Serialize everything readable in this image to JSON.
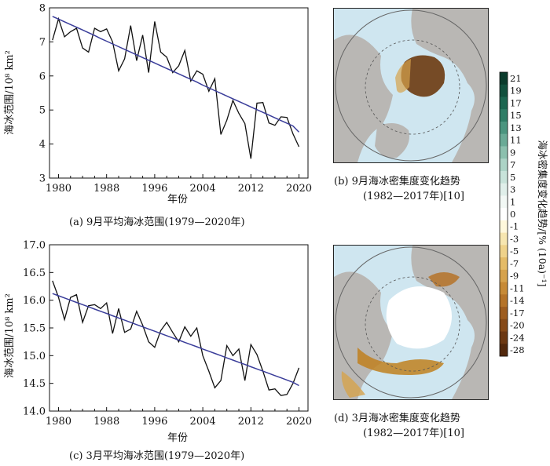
{
  "panel_a": {
    "caption": "(a) 9月平均海冰范围(1979—2020年)",
    "ylabel": "海冰范围/10⁸ km²",
    "xlabel": "年份"
  },
  "panel_b": {
    "caption_line1": "(b) 9月海冰密集度变化趋势",
    "caption_line2": "(1982—2017年)[10]"
  },
  "panel_c": {
    "caption": "(c) 3月平均海冰范围(1979—2020年)",
    "ylabel": "海冰范围/10⁸ km²",
    "xlabel": "年份"
  },
  "panel_d": {
    "caption_line1": "(d) 3月海冰密集度变化趋势",
    "caption_line2": "(1982—2017年)[10]"
  },
  "colorbar": {
    "label": "海冰密集度变化趋势/[% (10a)⁻¹]",
    "ticks": [
      "21",
      "19",
      "17",
      "15",
      "13",
      "11",
      "9",
      "7",
      "5",
      "3",
      "1",
      "0",
      "-1",
      "-3",
      "-5",
      "-7",
      "-9",
      "-11",
      "-14",
      "-17",
      "-20",
      "-24",
      "-28"
    ],
    "colors": [
      "#0a3b2c",
      "#11503d",
      "#1c6650",
      "#2f7d66",
      "#4b957f",
      "#6aaa96",
      "#8cc0ae",
      "#acd3c6",
      "#c8e3da",
      "#e0efea",
      "#f2f8f5",
      "#ffffff",
      "#fff8dc",
      "#f7e6b0",
      "#efd28a",
      "#e4bb67",
      "#d6a24c",
      "#c78a36",
      "#b57328",
      "#9e5d1f",
      "#864a18",
      "#6c3812",
      "#52280c"
    ]
  },
  "map_colors": {
    "ocean": "#cfe6f0",
    "land": "#b9b7b4",
    "ice": "#ffffff",
    "loss_strong": "#6b3a10",
    "loss_mid": "#c0801f",
    "loss_light": "#e8c57a"
  },
  "line_color": "#111111",
  "trend_color": "#3a3d9a",
  "chart_data": [
    {
      "type": "line",
      "title": "(a) 9月平均海冰范围(1979—2020年)",
      "xlabel": "年份",
      "ylabel": "海冰范围/10⁸ km²",
      "xlim": [
        1978.5,
        2021.5
      ],
      "ylim": [
        3,
        8
      ],
      "xticks": [
        1980,
        1988,
        1996,
        2004,
        2012,
        2020
      ],
      "yticks": [
        3,
        4,
        5,
        6,
        7,
        8
      ],
      "x": [
        1979,
        1980,
        1981,
        1982,
        1983,
        1984,
        1985,
        1986,
        1987,
        1988,
        1989,
        1990,
        1991,
        1992,
        1993,
        1994,
        1995,
        1996,
        1997,
        1998,
        1999,
        2000,
        2001,
        2002,
        2003,
        2004,
        2005,
        2006,
        2007,
        2008,
        2009,
        2010,
        2011,
        2012,
        2013,
        2014,
        2015,
        2016,
        2017,
        2018,
        2019,
        2020
      ],
      "series": [
        {
          "values": [
            7.05,
            7.68,
            7.15,
            7.3,
            7.4,
            6.82,
            6.7,
            7.4,
            7.3,
            7.38,
            7.0,
            6.15,
            6.5,
            7.48,
            6.45,
            7.2,
            6.1,
            7.6,
            6.7,
            6.55,
            6.1,
            6.3,
            6.75,
            5.85,
            6.15,
            6.05,
            5.55,
            5.92,
            4.28,
            4.7,
            5.28,
            4.9,
            4.6,
            3.57,
            5.2,
            5.22,
            4.62,
            4.55,
            4.8,
            4.78,
            4.3,
            3.92
          ]
        },
        {
          "values": [
            7.75,
            7.67,
            7.59,
            7.51,
            7.43,
            7.35,
            7.27,
            7.19,
            7.1,
            7.02,
            6.94,
            6.86,
            6.78,
            6.7,
            6.62,
            6.54,
            6.46,
            6.38,
            6.3,
            6.22,
            6.14,
            6.06,
            5.98,
            5.9,
            5.82,
            5.73,
            5.65,
            5.57,
            5.49,
            5.41,
            5.33,
            5.25,
            5.17,
            5.09,
            5.01,
            4.93,
            4.85,
            4.77,
            4.69,
            4.61,
            4.53,
            4.35
          ]
        }
      ]
    },
    {
      "type": "line",
      "title": "(c) 3月平均海冰范围(1979—2020年)",
      "xlabel": "年份",
      "ylabel": "海冰范围/10⁸ km²",
      "xlim": [
        1978.5,
        2021.5
      ],
      "ylim": [
        14.0,
        17.0
      ],
      "xticks": [
        1980,
        1988,
        1996,
        2004,
        2012,
        2020
      ],
      "yticks": [
        14.0,
        14.5,
        15.0,
        15.5,
        16.0,
        16.5,
        17.0
      ],
      "x": [
        1979,
        1980,
        1981,
        1982,
        1983,
        1984,
        1985,
        1986,
        1987,
        1988,
        1989,
        1990,
        1991,
        1992,
        1993,
        1994,
        1995,
        1996,
        1997,
        1998,
        1999,
        2000,
        2001,
        2002,
        2003,
        2004,
        2005,
        2006,
        2007,
        2008,
        2009,
        2010,
        2011,
        2012,
        2013,
        2014,
        2015,
        2016,
        2017,
        2018,
        2019,
        2020
      ],
      "series": [
        {
          "values": [
            16.35,
            16.05,
            15.65,
            16.05,
            16.1,
            15.6,
            15.9,
            15.92,
            15.85,
            15.95,
            15.4,
            15.85,
            15.42,
            15.48,
            15.8,
            15.55,
            15.25,
            15.15,
            15.45,
            15.6,
            15.42,
            15.25,
            15.52,
            15.35,
            15.5,
            15.0,
            14.72,
            14.42,
            14.55,
            15.18,
            15.0,
            15.12,
            14.55,
            15.2,
            15.02,
            14.72,
            14.38,
            14.4,
            14.28,
            14.3,
            14.5,
            14.78
          ]
        },
        {
          "values": [
            16.12,
            16.08,
            16.04,
            16.0,
            15.96,
            15.92,
            15.88,
            15.84,
            15.8,
            15.76,
            15.72,
            15.68,
            15.64,
            15.6,
            15.56,
            15.52,
            15.48,
            15.44,
            15.4,
            15.36,
            15.32,
            15.28,
            15.24,
            15.2,
            15.16,
            15.12,
            15.08,
            15.04,
            15.0,
            14.96,
            14.92,
            14.88,
            14.84,
            14.8,
            14.76,
            14.72,
            14.68,
            14.64,
            14.6,
            14.56,
            14.52,
            14.46
          ]
        }
      ]
    }
  ]
}
